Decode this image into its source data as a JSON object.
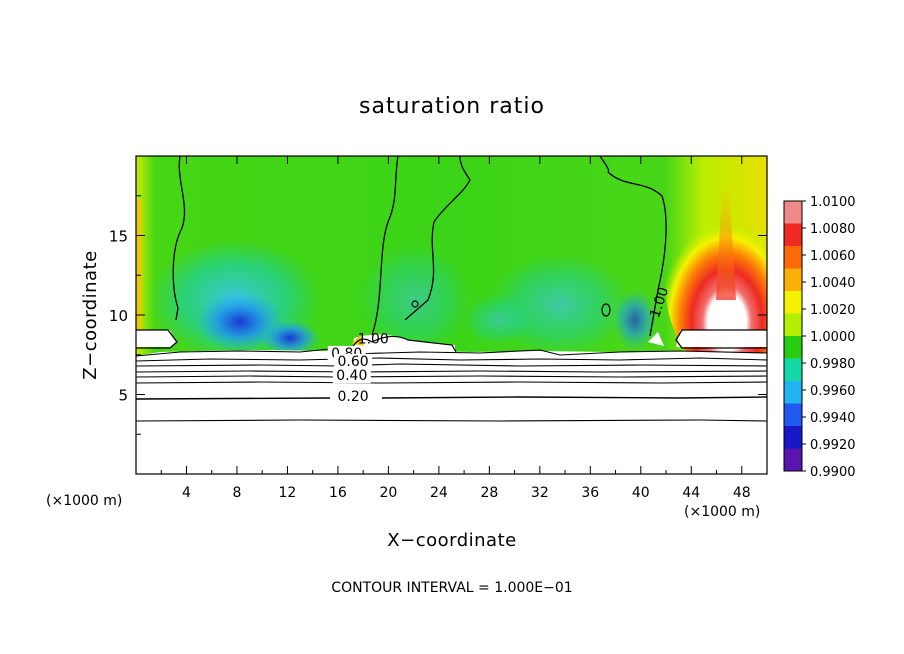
{
  "chart_data": {
    "type": "heatmap",
    "title": "saturation ratio",
    "xlabel": "X−coordinate",
    "ylabel": "Z−coordinate",
    "x_unit_left": "(×1000 m)",
    "x_unit_right": "(×1000 m)",
    "footer": "CONTOUR INTERVAL = 1.000E−01",
    "xlim": [
      0,
      50
    ],
    "ylim": [
      0,
      20
    ],
    "x_ticks": [
      4,
      8,
      12,
      16,
      20,
      24,
      28,
      32,
      36,
      40,
      44,
      48
    ],
    "y_ticks": [
      5,
      10,
      15
    ],
    "colorbar": {
      "levels": [
        "1.0100",
        "1.0080",
        "1.0060",
        "1.0040",
        "1.0020",
        "1.0000",
        "0.9980",
        "0.9960",
        "0.9940",
        "0.9920",
        "0.9900"
      ],
      "colors": [
        "#f08a8a",
        "#ee2a22",
        "#fc6a08",
        "#fcb008",
        "#f5f200",
        "#b4ee00",
        "#28cc10",
        "#14d8a6",
        "#20b4f0",
        "#2058f0",
        "#1818c8",
        "#5a14b0"
      ]
    },
    "contour_labels": [
      {
        "text": "1.00",
        "x": 18.8,
        "z": 8.2,
        "rotate": 0
      },
      {
        "text": "1.00",
        "x": 41.8,
        "z": 10.7,
        "rotate": -72
      },
      {
        "text": "0.80",
        "x": 16.7,
        "z": 7.3,
        "rotate": 0
      },
      {
        "text": "0.60",
        "x": 17.2,
        "z": 6.8,
        "rotate": 0
      },
      {
        "text": "0.40",
        "x": 17.1,
        "z": 5.9,
        "rotate": 0
      },
      {
        "text": "0.20",
        "x": 17.2,
        "z": 4.6,
        "rotate": 0
      }
    ]
  }
}
